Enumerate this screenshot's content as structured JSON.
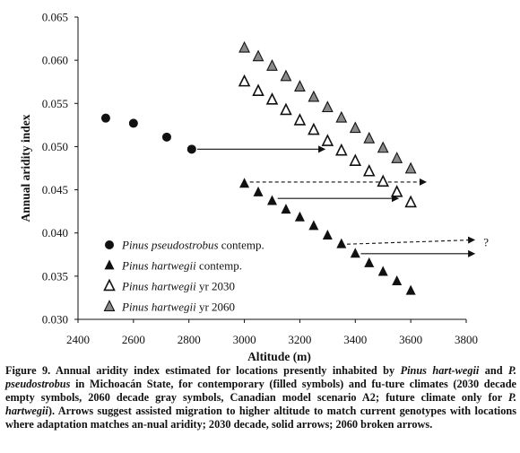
{
  "chart_data": {
    "type": "scatter",
    "xlabel": "Altitude  (m)",
    "ylabel": "Annual aridity index",
    "xlim": [
      2400,
      3800
    ],
    "ylim": [
      0.03,
      0.065
    ],
    "xticks": [
      "2400",
      "2600",
      "2800",
      "3000",
      "3200",
      "3400",
      "3600",
      "3800"
    ],
    "yticks": [
      "0.030",
      "0.035",
      "0.040",
      "0.045",
      "0.050",
      "0.055",
      "0.060",
      "0.065"
    ],
    "series": [
      {
        "name": "Pinus pseudostrobus contemp.",
        "name_italic": "Pinus pseudostrobus",
        "name_suffix": " contemp.",
        "marker": "circle",
        "color": "#111111",
        "x": [
          2500,
          2600,
          2720,
          2810
        ],
        "y": [
          0.0533,
          0.0527,
          0.0511,
          0.0497
        ]
      },
      {
        "name": "Pinus hartwegii contemp.",
        "name_italic": "Pinus hartwegii",
        "name_suffix": " contemp.",
        "marker": "triangle-filled",
        "color": "#111111",
        "x": [
          3000,
          3050,
          3100,
          3150,
          3200,
          3250,
          3300,
          3350,
          3400,
          3450,
          3500,
          3550,
          3600
        ],
        "y": [
          0.0457,
          0.0447,
          0.0437,
          0.0427,
          0.0418,
          0.0408,
          0.0397,
          0.0387,
          0.0376,
          0.0365,
          0.0355,
          0.0344,
          0.0333
        ]
      },
      {
        "name": "Pinus hartwegii yr 2030",
        "name_italic": "Pinus hartwegii",
        "name_suffix": " yr 2030",
        "marker": "triangle-open",
        "color": "#111111",
        "x": [
          3000,
          3050,
          3100,
          3150,
          3200,
          3250,
          3300,
          3350,
          3400,
          3450,
          3500,
          3550,
          3600
        ],
        "y": [
          0.0575,
          0.0564,
          0.0554,
          0.0542,
          0.053,
          0.0519,
          0.0506,
          0.0495,
          0.0483,
          0.0471,
          0.0459,
          0.0447,
          0.0435
        ]
      },
      {
        "name": "Pinus hartwegii yr 2060",
        "name_italic": "Pinus hartwegii",
        "name_suffix": " yr 2060",
        "marker": "triangle-gray",
        "color": "#8a8a8a",
        "x": [
          3000,
          3050,
          3100,
          3150,
          3200,
          3250,
          3300,
          3350,
          3400,
          3450,
          3500,
          3550,
          3600
        ],
        "y": [
          0.0614,
          0.0604,
          0.0593,
          0.0581,
          0.0569,
          0.0557,
          0.0545,
          0.0533,
          0.0521,
          0.0509,
          0.0498,
          0.0486,
          0.0474
        ]
      }
    ],
    "arrows": [
      {
        "style": "solid",
        "x1": 2830,
        "y1": 0.0497,
        "x2": 3290,
        "y2": 0.0497
      },
      {
        "style": "dashed",
        "x1": 3020,
        "y1": 0.0459,
        "x2": 3655,
        "y2": 0.0459
      },
      {
        "style": "solid",
        "x1": 3120,
        "y1": 0.044,
        "x2": 3555,
        "y2": 0.044
      },
      {
        "style": "dashed",
        "x1": 3370,
        "y1": 0.0387,
        "x2": 3830,
        "y2": 0.0392
      },
      {
        "style": "solid",
        "x1": 3420,
        "y1": 0.0376,
        "x2": 3830,
        "y2": 0.0376
      }
    ],
    "annotation": "?",
    "legend_position": "bottom-left",
    "grid": false
  },
  "caption": {
    "runs": [
      {
        "t": "Figure 9. Annual aridity index estimated for locations presently inhabited by ",
        "i": false
      },
      {
        "t": "Pinus hart-wegii",
        "i": true
      },
      {
        "t": " and ",
        "i": false
      },
      {
        "t": "P. pseudostrobus",
        "i": true
      },
      {
        "t": " in Michoacán State, for contemporary (filled symbols) and fu-ture climates  (2030 decade empty symbols, 2060 decade gray symbols, Canadian model scenario A2; future climate only for ",
        "i": false
      },
      {
        "t": "P. hartwegii",
        "i": true
      },
      {
        "t": "). Arrows suggest assisted migration to higher altitude to match current genotypes with locations where adaptation matches an-nual aridity; 2030 decade, solid arrows; 2060 broken arrows.",
        "i": false
      }
    ]
  }
}
